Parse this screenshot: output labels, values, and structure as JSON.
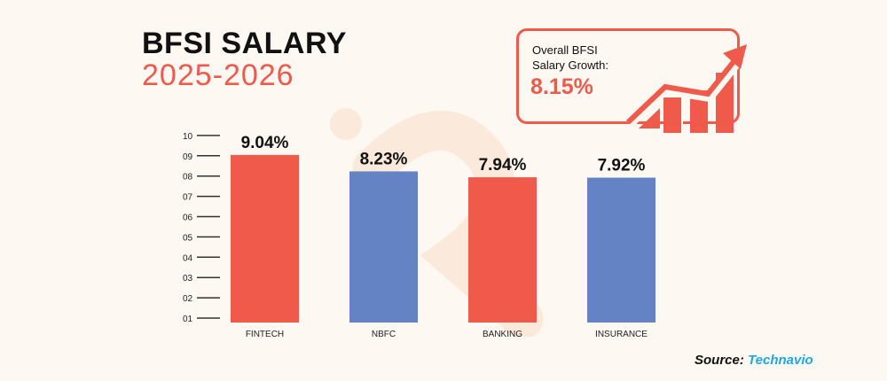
{
  "header": {
    "title": "BFSI SALARY",
    "subtitle": "2025-2026"
  },
  "callout": {
    "label_line1": "Overall BFSI",
    "label_line2": "Salary Growth:",
    "value": "8.15%",
    "icon": "rising-bar-chart-arrow-icon"
  },
  "source": {
    "label": "Source:",
    "brand": "Technavio"
  },
  "colors": {
    "red": "#ef5a4b",
    "blue": "#6483c4",
    "background": "#fdf8f1",
    "brand": "#1ea7e4"
  },
  "chart_data": {
    "type": "bar",
    "categories": [
      "FINTECH",
      "NBFC",
      "BANKING",
      "INSURANCE"
    ],
    "values": [
      9.04,
      8.23,
      7.94,
      7.92
    ],
    "data_labels": [
      "9.04%",
      "8.23%",
      "7.94%",
      "7.92%"
    ],
    "bar_colors": [
      "#ef5a4b",
      "#6483c4",
      "#ef5a4b",
      "#6483c4"
    ],
    "yticks": [
      "01",
      "02",
      "03",
      "04",
      "05",
      "06",
      "07",
      "08",
      "09",
      "10"
    ],
    "ylim": [
      1,
      10
    ],
    "grid": false,
    "legend": "none"
  }
}
